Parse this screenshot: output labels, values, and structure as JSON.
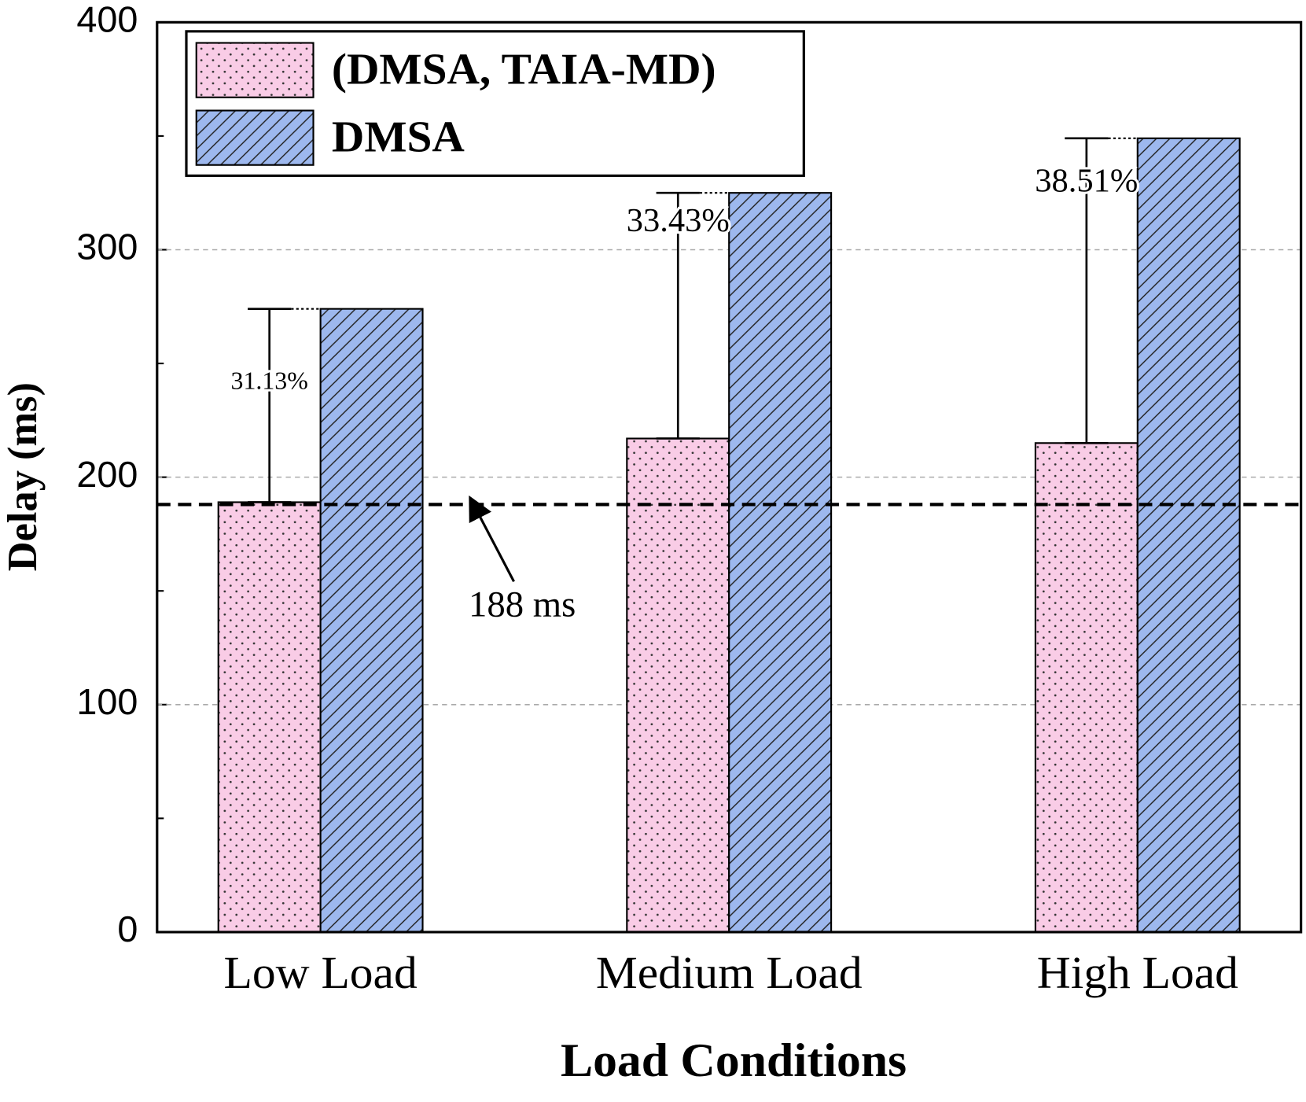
{
  "chart_data": {
    "type": "bar",
    "x_label": "Load Conditions",
    "y_label": "Delay (ms)",
    "categories": [
      "Low Load",
      "Medium Load",
      "High Load"
    ],
    "series": [
      {
        "name": "(DMSA, TAIA-MD)",
        "color": "#f9cce6",
        "pattern": "dots",
        "values": [
          189,
          217,
          215
        ]
      },
      {
        "name": "DMSA",
        "color": "#9db8ee",
        "pattern": "hatch",
        "values": [
          274,
          325,
          349
        ]
      }
    ],
    "percent_labels": [
      "31.13%",
      "33.43%",
      "38.51%"
    ],
    "reference_line": {
      "value": 188,
      "label": "188 ms"
    },
    "ylim": [
      0,
      400
    ],
    "yticks": [
      0,
      100,
      200,
      300,
      400
    ],
    "grid": true,
    "legend": "upper left"
  }
}
